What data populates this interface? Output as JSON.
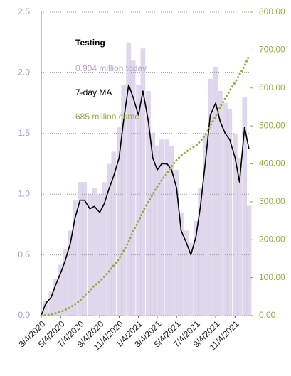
{
  "chart_data": {
    "type": "line",
    "title": "Testing",
    "x": [
      "3/4/2020",
      "3/18/2020",
      "4/4/2020",
      "4/18/2020",
      "5/4/2020",
      "5/18/2020",
      "6/4/2020",
      "6/18/2020",
      "7/4/2020",
      "7/18/2020",
      "8/4/2020",
      "8/18/2020",
      "9/4/2020",
      "9/18/2020",
      "10/4/2020",
      "10/18/2020",
      "11/4/2020",
      "11/18/2020",
      "12/4/2020",
      "12/18/2020",
      "1/4/2021",
      "1/18/2021",
      "2/4/2021",
      "2/18/2021",
      "3/4/2021",
      "3/18/2021",
      "4/4/2021",
      "4/18/2021",
      "5/4/2021",
      "5/18/2021",
      "6/4/2021",
      "6/18/2021",
      "7/4/2021",
      "7/18/2021",
      "8/4/2021",
      "8/18/2021",
      "9/4/2021",
      "9/18/2021",
      "10/4/2021",
      "10/18/2021",
      "11/4/2021",
      "11/18/2021",
      "12/4/2021",
      "12/18/2021"
    ],
    "xticks": [
      "3/4/2020",
      "5/4/2020",
      "7/4/2020",
      "9/4/2020",
      "11/4/2020",
      "1/4/2021",
      "3/4/2021",
      "5/4/2021",
      "7/4/2021",
      "9/4/2021",
      "11/4/2021"
    ],
    "series": [
      {
        "name": "0.904 million today",
        "kind": "bar",
        "color": "#c9bce0",
        "values": [
          0,
          0.12,
          0.2,
          0.3,
          0.42,
          0.55,
          0.7,
          0.95,
          1.1,
          1.1,
          1.0,
          1.05,
          1.0,
          1.1,
          1.25,
          1.35,
          1.55,
          1.9,
          2.25,
          2.1,
          1.9,
          2.2,
          1.85,
          1.5,
          1.4,
          1.45,
          1.45,
          1.4,
          1.2,
          0.85,
          0.7,
          0.6,
          0.78,
          1.05,
          1.5,
          1.95,
          2.05,
          1.85,
          1.75,
          1.7,
          1.5,
          1.3,
          1.8,
          0.904
        ]
      },
      {
        "name": "7-day MA",
        "kind": "line",
        "color": "#000000",
        "values": [
          0,
          0.1,
          0.15,
          0.25,
          0.35,
          0.45,
          0.6,
          0.8,
          0.95,
          0.95,
          0.88,
          0.9,
          0.85,
          0.92,
          1.05,
          1.15,
          1.3,
          1.6,
          1.9,
          1.8,
          1.65,
          1.85,
          1.6,
          1.3,
          1.2,
          1.25,
          1.25,
          1.2,
          1.05,
          0.7,
          0.6,
          0.5,
          0.65,
          0.9,
          1.3,
          1.65,
          1.75,
          1.6,
          1.5,
          1.45,
          1.3,
          1.1,
          1.55,
          1.37
        ]
      },
      {
        "name": "685 million cume",
        "kind": "dotted",
        "axis": "y2",
        "color": "#8fad3c",
        "values": [
          0,
          1,
          3,
          6,
          10,
          15,
          22,
          30,
          40,
          53,
          66,
          79,
          90,
          102,
          117,
          132,
          150,
          170,
          195,
          222,
          248,
          275,
          300,
          320,
          340,
          357,
          375,
          393,
          410,
          422,
          432,
          440,
          448,
          460,
          478,
          500,
          525,
          550,
          572,
          593,
          615,
          635,
          658,
          685
        ]
      }
    ],
    "ylim": [
      0,
      2.5
    ],
    "yticks": [
      {
        "value": 0,
        "label": "0.0"
      },
      {
        "value": 0.5,
        "label": "0.5"
      },
      {
        "value": 1,
        "label": "1.0"
      },
      {
        "value": 1.5,
        "label": "1.5"
      },
      {
        "value": 2,
        "label": "2.0"
      },
      {
        "value": 2.5,
        "label": "2.5"
      }
    ],
    "y2lim": [
      0,
      800
    ],
    "y2ticks": [
      {
        "value": 0,
        "label": "0.00"
      },
      {
        "value": 100,
        "label": "100.00"
      },
      {
        "value": 200,
        "label": "200.00"
      },
      {
        "value": 300,
        "label": "300.00"
      },
      {
        "value": 400,
        "label": "400.00"
      },
      {
        "value": 500,
        "label": "500.00"
      },
      {
        "value": 600,
        "label": "600.00"
      },
      {
        "value": 700,
        "label": "700.00"
      },
      {
        "value": 800,
        "label": "800.00"
      }
    ],
    "grid": true
  }
}
